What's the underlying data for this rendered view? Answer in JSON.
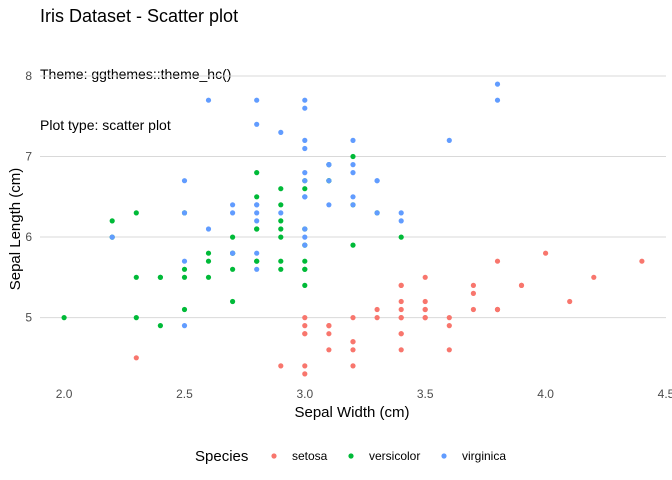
{
  "chart_data": {
    "type": "scatter",
    "title": "Iris Dataset - Scatter plot",
    "subtitle_lines": [
      "Theme: ggthemes::theme_hc()",
      "Plot type: scatter plot"
    ],
    "xlabel": "Sepal Width (cm)",
    "ylabel": "Sepal Length (cm)",
    "xlim": [
      1.9,
      4.5
    ],
    "ylim": [
      4.2,
      8.0
    ],
    "x_ticks": [
      2.0,
      2.5,
      3.0,
      3.5,
      4.0,
      4.5
    ],
    "x_tick_labels": [
      "2.0",
      "2.5",
      "3.0",
      "3.5",
      "4.0",
      "4.5"
    ],
    "y_ticks": [
      5,
      6,
      7,
      8
    ],
    "y_tick_labels": [
      "5",
      "6",
      "7",
      "8"
    ],
    "grid": "horizontal",
    "legend": {
      "title": "Species",
      "placement": "bottom"
    },
    "series": [
      {
        "name": "setosa",
        "color": "#F8766D",
        "points": [
          [
            3.5,
            5.1
          ],
          [
            3.0,
            4.9
          ],
          [
            3.2,
            4.7
          ],
          [
            3.1,
            4.6
          ],
          [
            3.6,
            5.0
          ],
          [
            3.9,
            5.4
          ],
          [
            3.4,
            4.6
          ],
          [
            3.4,
            5.0
          ],
          [
            2.9,
            4.4
          ],
          [
            3.1,
            4.9
          ],
          [
            3.7,
            5.4
          ],
          [
            3.4,
            4.8
          ],
          [
            3.0,
            4.8
          ],
          [
            3.0,
            4.3
          ],
          [
            4.0,
            5.8
          ],
          [
            4.4,
            5.7
          ],
          [
            3.9,
            5.4
          ],
          [
            3.5,
            5.1
          ],
          [
            3.8,
            5.7
          ],
          [
            3.8,
            5.1
          ],
          [
            3.4,
            5.4
          ],
          [
            3.7,
            5.1
          ],
          [
            3.6,
            4.6
          ],
          [
            3.3,
            5.1
          ],
          [
            3.4,
            4.8
          ],
          [
            3.0,
            5.0
          ],
          [
            3.4,
            5.0
          ],
          [
            3.5,
            5.2
          ],
          [
            3.4,
            5.2
          ],
          [
            3.2,
            4.7
          ],
          [
            3.1,
            4.8
          ],
          [
            3.4,
            5.4
          ],
          [
            4.1,
            5.2
          ],
          [
            4.2,
            5.5
          ],
          [
            3.1,
            4.9
          ],
          [
            3.2,
            5.0
          ],
          [
            3.5,
            5.5
          ],
          [
            3.6,
            4.9
          ],
          [
            3.0,
            4.4
          ],
          [
            3.4,
            5.1
          ],
          [
            3.5,
            5.0
          ],
          [
            2.3,
            4.5
          ],
          [
            3.2,
            4.4
          ],
          [
            3.5,
            5.0
          ],
          [
            3.8,
            5.1
          ],
          [
            3.0,
            4.8
          ],
          [
            3.8,
            5.1
          ],
          [
            3.2,
            4.6
          ],
          [
            3.7,
            5.3
          ],
          [
            3.3,
            5.0
          ]
        ]
      },
      {
        "name": "versicolor",
        "color": "#00BA38",
        "points": [
          [
            3.2,
            7.0
          ],
          [
            3.2,
            6.4
          ],
          [
            3.1,
            6.9
          ],
          [
            2.3,
            5.5
          ],
          [
            2.8,
            6.5
          ],
          [
            2.8,
            5.7
          ],
          [
            3.3,
            6.3
          ],
          [
            2.4,
            4.9
          ],
          [
            2.9,
            6.6
          ],
          [
            2.7,
            5.2
          ],
          [
            2.0,
            5.0
          ],
          [
            3.0,
            5.9
          ],
          [
            2.2,
            6.0
          ],
          [
            2.9,
            6.1
          ],
          [
            2.9,
            5.6
          ],
          [
            3.1,
            6.7
          ],
          [
            3.0,
            5.6
          ],
          [
            2.7,
            5.8
          ],
          [
            2.2,
            6.2
          ],
          [
            2.5,
            5.6
          ],
          [
            3.2,
            5.9
          ],
          [
            2.8,
            6.1
          ],
          [
            2.5,
            6.3
          ],
          [
            2.8,
            6.1
          ],
          [
            2.9,
            6.4
          ],
          [
            3.0,
            6.6
          ],
          [
            2.8,
            6.8
          ],
          [
            3.0,
            6.7
          ],
          [
            2.9,
            6.0
          ],
          [
            2.6,
            5.7
          ],
          [
            2.4,
            5.5
          ],
          [
            2.4,
            5.5
          ],
          [
            2.7,
            5.8
          ],
          [
            2.7,
            6.0
          ],
          [
            3.0,
            5.4
          ],
          [
            3.4,
            6.0
          ],
          [
            3.1,
            6.7
          ],
          [
            2.3,
            6.3
          ],
          [
            3.0,
            5.6
          ],
          [
            2.5,
            5.5
          ],
          [
            2.6,
            5.5
          ],
          [
            3.0,
            6.1
          ],
          [
            2.6,
            5.8
          ],
          [
            2.3,
            5.0
          ],
          [
            2.7,
            5.6
          ],
          [
            3.0,
            5.7
          ],
          [
            2.9,
            5.7
          ],
          [
            2.9,
            6.2
          ],
          [
            2.5,
            5.1
          ],
          [
            2.8,
            5.7
          ]
        ]
      },
      {
        "name": "virginica",
        "color": "#619CFF",
        "points": [
          [
            3.3,
            6.3
          ],
          [
            2.7,
            5.8
          ],
          [
            3.0,
            7.1
          ],
          [
            2.9,
            6.3
          ],
          [
            3.0,
            6.5
          ],
          [
            3.0,
            7.6
          ],
          [
            2.5,
            4.9
          ],
          [
            2.9,
            7.3
          ],
          [
            2.5,
            6.7
          ],
          [
            3.6,
            7.2
          ],
          [
            3.2,
            6.5
          ],
          [
            2.7,
            6.4
          ],
          [
            3.0,
            6.8
          ],
          [
            2.5,
            5.7
          ],
          [
            2.8,
            5.8
          ],
          [
            3.2,
            6.4
          ],
          [
            3.0,
            6.5
          ],
          [
            3.8,
            7.7
          ],
          [
            2.6,
            7.7
          ],
          [
            2.2,
            6.0
          ],
          [
            3.2,
            6.9
          ],
          [
            2.8,
            5.6
          ],
          [
            2.8,
            7.7
          ],
          [
            2.7,
            6.3
          ],
          [
            3.3,
            6.7
          ],
          [
            3.2,
            7.2
          ],
          [
            2.8,
            6.2
          ],
          [
            3.0,
            6.1
          ],
          [
            2.8,
            6.4
          ],
          [
            3.0,
            7.2
          ],
          [
            2.8,
            7.4
          ],
          [
            3.8,
            7.9
          ],
          [
            2.8,
            6.4
          ],
          [
            2.8,
            6.3
          ],
          [
            2.6,
            6.1
          ],
          [
            3.0,
            7.7
          ],
          [
            3.4,
            6.3
          ],
          [
            3.1,
            6.4
          ],
          [
            3.0,
            6.0
          ],
          [
            3.1,
            6.9
          ],
          [
            3.1,
            6.7
          ],
          [
            3.1,
            6.9
          ],
          [
            2.7,
            5.8
          ],
          [
            3.2,
            6.8
          ],
          [
            3.3,
            6.7
          ],
          [
            3.0,
            6.7
          ],
          [
            2.5,
            6.3
          ],
          [
            3.0,
            6.5
          ],
          [
            3.4,
            6.2
          ],
          [
            3.0,
            5.9
          ]
        ]
      }
    ]
  }
}
